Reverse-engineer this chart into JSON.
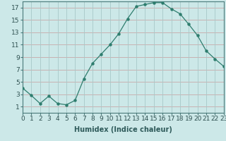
{
  "x": [
    0,
    1,
    2,
    3,
    4,
    5,
    6,
    7,
    8,
    9,
    10,
    11,
    12,
    13,
    14,
    15,
    16,
    17,
    18,
    19,
    20,
    21,
    22,
    23
  ],
  "y": [
    4.0,
    2.8,
    1.5,
    2.7,
    1.5,
    1.3,
    2.0,
    5.5,
    8.0,
    9.5,
    11.0,
    12.8,
    15.2,
    17.2,
    17.5,
    17.8,
    17.8,
    16.8,
    16.0,
    14.3,
    12.5,
    10.0,
    8.7,
    7.5
  ],
  "xlabel": "Humidex (Indice chaleur)",
  "xlim": [
    0,
    23
  ],
  "ylim": [
    0,
    18
  ],
  "yticks": [
    1,
    3,
    5,
    7,
    9,
    11,
    13,
    15,
    17
  ],
  "xticks": [
    0,
    1,
    2,
    3,
    4,
    5,
    6,
    7,
    8,
    9,
    10,
    11,
    12,
    13,
    14,
    15,
    16,
    17,
    18,
    19,
    20,
    21,
    22,
    23
  ],
  "line_color": "#2e7d6e",
  "marker_color": "#2e7d6e",
  "bg_color": "#cce8e8",
  "grid_h_color": "#c8a8a8",
  "grid_v_color": "#a8c8c8",
  "label_fontsize": 7,
  "tick_fontsize": 6.5
}
